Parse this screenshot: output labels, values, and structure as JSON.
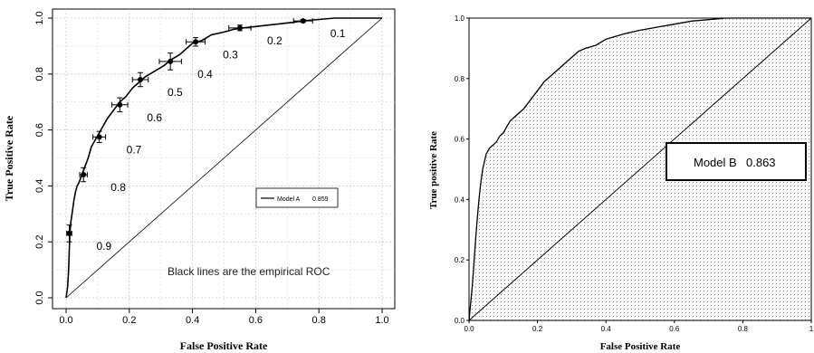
{
  "chart_data": [
    {
      "type": "line",
      "title": "",
      "xlabel": "False Positive Rate",
      "ylabel": "True Positive Rate",
      "xlim": [
        0,
        1
      ],
      "ylim": [
        0,
        1
      ],
      "grid": true,
      "x_ticks": [
        "0.0",
        "0.2",
        "0.4",
        "0.6",
        "0.8",
        "1.0"
      ],
      "y_ticks": [
        "0.0",
        "0.2",
        "0.4",
        "0.6",
        "0.8",
        "1.0"
      ],
      "legend": {
        "label": "Model  A",
        "value": "0.859",
        "position": "center-right"
      },
      "annotation": "Black lines are the empirical ROC",
      "series": [
        {
          "name": "Model  A",
          "x": [
            0.0,
            0.005,
            0.008,
            0.01,
            0.012,
            0.015,
            0.02,
            0.025,
            0.03,
            0.035,
            0.04,
            0.05,
            0.06,
            0.07,
            0.08,
            0.09,
            0.1,
            0.11,
            0.13,
            0.15,
            0.17,
            0.19,
            0.21,
            0.23,
            0.25,
            0.28,
            0.31,
            0.33,
            0.36,
            0.38,
            0.4,
            0.43,
            0.46,
            0.5,
            0.53,
            0.56,
            0.6,
            0.64,
            0.68,
            0.72,
            0.75,
            0.8,
            0.85,
            0.9,
            0.95,
            1.0
          ],
          "y": [
            0.0,
            0.04,
            0.1,
            0.17,
            0.23,
            0.27,
            0.31,
            0.35,
            0.38,
            0.4,
            0.41,
            0.44,
            0.47,
            0.5,
            0.54,
            0.56,
            0.58,
            0.6,
            0.64,
            0.67,
            0.7,
            0.72,
            0.75,
            0.77,
            0.79,
            0.81,
            0.83,
            0.85,
            0.87,
            0.89,
            0.91,
            0.92,
            0.94,
            0.95,
            0.96,
            0.965,
            0.97,
            0.975,
            0.98,
            0.985,
            0.99,
            0.995,
            1.0,
            1.0,
            1.0,
            1.0
          ]
        }
      ],
      "threshold_points": [
        {
          "label": "0.9",
          "x": 0.01,
          "y": 0.23,
          "xerr": 0.008,
          "yerr": 0.03
        },
        {
          "label": "0.8",
          "x": 0.055,
          "y": 0.44,
          "xerr": 0.012,
          "yerr": 0.025
        },
        {
          "label": "0.7",
          "x": 0.105,
          "y": 0.575,
          "xerr": 0.02,
          "yerr": 0.02
        },
        {
          "label": "0.6",
          "x": 0.17,
          "y": 0.69,
          "xerr": 0.025,
          "yerr": 0.025
        },
        {
          "label": "0.5",
          "x": 0.235,
          "y": 0.78,
          "xerr": 0.025,
          "yerr": 0.025
        },
        {
          "label": "0.4",
          "x": 0.33,
          "y": 0.845,
          "xerr": 0.035,
          "yerr": 0.03
        },
        {
          "label": "0.3",
          "x": 0.41,
          "y": 0.915,
          "xerr": 0.03,
          "yerr": 0.015
        },
        {
          "label": "0.2",
          "x": 0.55,
          "y": 0.965,
          "xerr": 0.035,
          "yerr": 0.01
        },
        {
          "label": "0.1",
          "x": 0.75,
          "y": 0.99,
          "xerr": 0.03,
          "yerr": 0.005
        }
      ]
    },
    {
      "type": "line",
      "title": "",
      "xlabel": "False Positive Rate",
      "ylabel": "True positive Rate",
      "xlim": [
        0,
        1
      ],
      "ylim": [
        0,
        1
      ],
      "grid": false,
      "x_ticks": [
        "0.0",
        "0.2",
        "0.4",
        "0.6",
        "0.8",
        "1"
      ],
      "y_ticks": [
        "0.0",
        "0.2",
        "0.4",
        "0.6",
        "0.8",
        "1.0"
      ],
      "legend": {
        "label": "Model B",
        "value": "0.863",
        "position": "center-right"
      },
      "series": [
        {
          "name": "Model B",
          "x": [
            0.0,
            0.005,
            0.01,
            0.015,
            0.02,
            0.025,
            0.03,
            0.035,
            0.04,
            0.05,
            0.06,
            0.07,
            0.08,
            0.09,
            0.1,
            0.11,
            0.12,
            0.13,
            0.14,
            0.15,
            0.16,
            0.18,
            0.2,
            0.22,
            0.24,
            0.26,
            0.28,
            0.3,
            0.32,
            0.34,
            0.37,
            0.4,
            0.43,
            0.46,
            0.5,
            0.55,
            0.6,
            0.65,
            0.7,
            0.75,
            0.8,
            0.85,
            0.9,
            0.95,
            1.0
          ],
          "y": [
            0.0,
            0.06,
            0.12,
            0.2,
            0.28,
            0.35,
            0.41,
            0.46,
            0.5,
            0.55,
            0.57,
            0.58,
            0.59,
            0.61,
            0.62,
            0.64,
            0.66,
            0.67,
            0.68,
            0.69,
            0.7,
            0.73,
            0.76,
            0.79,
            0.81,
            0.83,
            0.85,
            0.87,
            0.89,
            0.9,
            0.91,
            0.93,
            0.94,
            0.95,
            0.96,
            0.97,
            0.98,
            0.99,
            0.995,
            1.0,
            1.0,
            1.0,
            1.0,
            1.0,
            1.0
          ]
        }
      ]
    }
  ]
}
